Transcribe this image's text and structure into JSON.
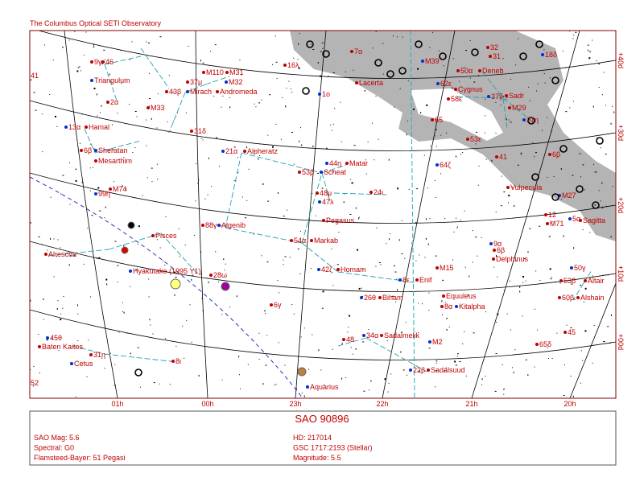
{
  "title": "The Columbus Optical SETI Observatory",
  "ra_labels": [
    "01h",
    "00h",
    "23h",
    "22h",
    "21h",
    "20h"
  ],
  "dec_labels": [
    "+40d",
    "+30d",
    "+20d",
    "+10d",
    "+00d"
  ],
  "map_labels": [
    "41",
    "9γ",
    "46",
    "Triangulum",
    "2α",
    "M33",
    "13α",
    "Hamal",
    "6β",
    "Sheratan",
    "Mesarthim",
    "M74",
    "99η",
    "Pisces",
    "Alrescha",
    "Hyakutake (1995 Y1)",
    "28ω",
    "6γ",
    "45θ",
    "Baten Kaitos",
    "31η",
    "Cetus",
    "8ι",
    "52",
    "Aquarius",
    "M110",
    "M31",
    "M32",
    "37μ",
    "43β",
    "Mirach",
    "Andromeda",
    "31δ",
    "21α",
    "Alpheratz",
    "16λ",
    "1ο",
    "7α",
    "Lacerta",
    "M39",
    "32",
    "31",
    "18δ",
    "50α",
    "Deneb",
    "62ε",
    "Cygnus",
    "58ε",
    "37γ",
    "Sadr",
    "M29",
    "21η",
    "65",
    "53ε",
    "64ζ",
    "41",
    "6β",
    "44η",
    "Matar",
    "53β",
    "Scheat",
    "24ι",
    "48μ",
    "47λ",
    "Pegasus",
    "Vulpecula",
    "M27",
    "12",
    "M71",
    "5α",
    "Sagitta",
    "88γ",
    "Algenib",
    "54α",
    "Markab",
    "9α",
    "6β",
    "Delphinus",
    "42ζ",
    "Homam",
    "M15",
    "50γ",
    "53β",
    "Altair",
    "8ε",
    "Enif",
    "Equuleus",
    "26θ",
    "Biham",
    "8α",
    "Kitalpha",
    "60β",
    "Alshain",
    "34α",
    "Sadalmelik",
    "48",
    "M2",
    "45",
    "65δ",
    "22β",
    "Sadalsuud"
  ],
  "info": {
    "title": "SAO 90896",
    "left": [
      "SAO Mag: 5.6",
      "Spectral: G0",
      "Flamsteed-Bayer: 51 Pegasi"
    ],
    "right": [
      "HD: 217014",
      "GSC 1717:2193 (Stellar)",
      "Magnitude: 5.5"
    ]
  }
}
